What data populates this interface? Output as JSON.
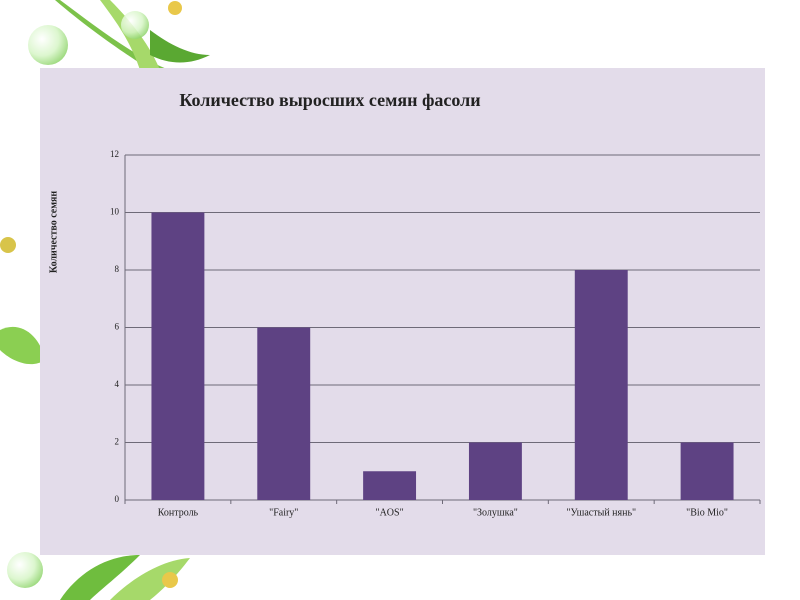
{
  "chart_data": {
    "type": "bar",
    "title": "Количество выросших семян фасоли",
    "y_label": "Количество семян",
    "categories": [
      "Контроль",
      "\"Fairy\"",
      "\"AOS\"",
      "\"Золушка\"",
      "\"Ушастый нянь\"",
      "\"Bio Mio\""
    ],
    "values": [
      10,
      6,
      1,
      2,
      8,
      2
    ],
    "color": "#5e4283",
    "ylim": [
      0,
      12
    ],
    "yticks": [
      0,
      2,
      4,
      6,
      8,
      10,
      12
    ],
    "grid": true
  }
}
